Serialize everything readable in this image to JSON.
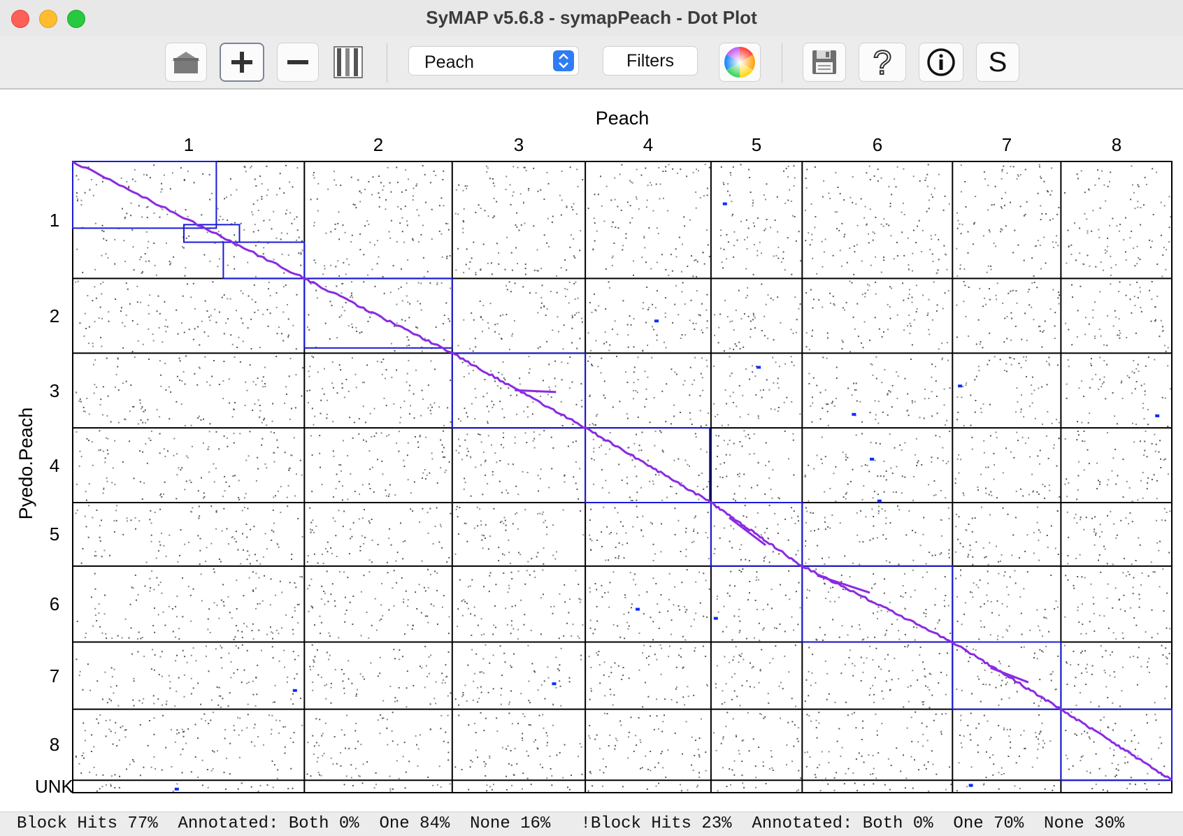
{
  "window": {
    "title": "SyMAP v5.6.8 - symapPeach - Dot Plot"
  },
  "toolbar": {
    "buttons": [
      {
        "name": "home-button",
        "icon": "home-icon"
      },
      {
        "name": "zoom-in-button",
        "icon": "plus-icon"
      },
      {
        "name": "zoom-out-button",
        "icon": "minus-icon"
      },
      {
        "name": "scale-button",
        "icon": "scale-bars-icon"
      },
      {
        "name": "color-button",
        "icon": "color-wheel-icon"
      },
      {
        "name": "save-button",
        "icon": "floppy-disk-icon"
      },
      {
        "name": "help-button",
        "icon": "question-mark-icon"
      },
      {
        "name": "info-button",
        "icon": "info-icon"
      },
      {
        "name": "stats-button",
        "icon": "s-letter-icon",
        "label": "S"
      }
    ],
    "reference_select": "Peach",
    "filters_label": "Filters"
  },
  "colors": {
    "hit_diagonal": "#8a2be2",
    "block_outline": "#1a1ad8",
    "grid": "#000000",
    "scatter": "#555555",
    "highlight_dot": "#0a2cff"
  },
  "chart_data": {
    "type": "scatter",
    "xlabel": "Peach",
    "ylabel": "Pyedo.Peach",
    "x_chromosomes": [
      "1",
      "2",
      "3",
      "4",
      "5",
      "6",
      "7",
      "8"
    ],
    "y_chromosomes": [
      "1",
      "2",
      "3",
      "4",
      "5",
      "6",
      "7",
      "8",
      "UNK"
    ],
    "x_chromosome_relative_sizes": [
      47,
      30,
      27,
      25.5,
      18.5,
      30.5,
      22,
      22.5
    ],
    "y_chromosome_relative_sizes": [
      47,
      30,
      30,
      30,
      25.5,
      30.5,
      27,
      28.5,
      5
    ],
    "synteny_blocks": [
      {
        "x_chr": "1",
        "y_chr": "1",
        "x_range": [
          0.0,
          0.62
        ],
        "y_range": [
          0.0,
          0.57
        ]
      },
      {
        "x_chr": "1",
        "y_chr": "1",
        "x_range": [
          0.48,
          0.72
        ],
        "y_range": [
          0.54,
          0.69
        ]
      },
      {
        "x_chr": "1",
        "y_chr": "1",
        "x_range": [
          0.65,
          1.0
        ],
        "y_range": [
          0.69,
          1.0
        ]
      },
      {
        "x_chr": "2",
        "y_chr": "2",
        "x_range": [
          0.0,
          1.0
        ],
        "y_range": [
          0.0,
          0.93
        ]
      },
      {
        "x_chr": "3",
        "y_chr": "3",
        "x_range": [
          0.0,
          1.0
        ],
        "y_range": [
          0.0,
          1.0
        ]
      },
      {
        "x_chr": "4",
        "y_chr": "4",
        "x_range": [
          0.0,
          0.99
        ],
        "y_range": [
          0.0,
          1.0
        ]
      },
      {
        "x_chr": "5",
        "y_chr": "5",
        "x_range": [
          0.0,
          1.0
        ],
        "y_range": [
          0.0,
          1.0
        ]
      },
      {
        "x_chr": "6",
        "y_chr": "6",
        "x_range": [
          0.0,
          1.0
        ],
        "y_range": [
          0.0,
          1.0
        ]
      },
      {
        "x_chr": "7",
        "y_chr": "7",
        "x_range": [
          0.0,
          1.0
        ],
        "y_range": [
          0.0,
          1.0
        ]
      },
      {
        "x_chr": "8",
        "y_chr": "8",
        "x_range": [
          0.0,
          1.0
        ],
        "y_range": [
          0.0,
          1.0
        ]
      }
    ],
    "diagonal_hits": "continuous collinear hits along chromosome pairs 1-1 through 8-8, with secondary parallel tracks in 3-3, 5-5, 6-6 and 7-7",
    "scatter_background": "sparse random non-block hits in every chromosome pair cell",
    "legend": "none",
    "grid": true
  },
  "status": {
    "text": "Block Hits 77%  Annotated: Both 0%  One 84%  None 16%   !Block Hits 23%  Annotated: Both 0%  One 70%  None 30%"
  }
}
